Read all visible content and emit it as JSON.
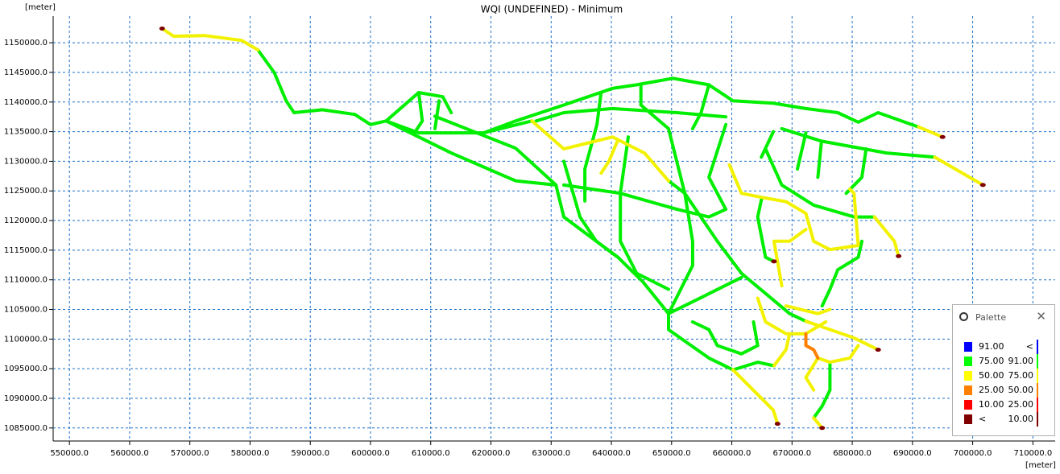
{
  "chart_data": {
    "type": "map",
    "title": "WQI (UNDEFINED) - Minimum",
    "x_label": "[meter]",
    "y_label": "[meter]",
    "grid": true,
    "xlim": [
      547300,
      713700
    ],
    "ylim": [
      1082800,
      1154500
    ],
    "xticks": [
      {
        "value": 550000,
        "label": "550000.0"
      },
      {
        "value": 560000,
        "label": "560000.0"
      },
      {
        "value": 570000,
        "label": "570000.0"
      },
      {
        "value": 580000,
        "label": "580000.0"
      },
      {
        "value": 590000,
        "label": "590000.0"
      },
      {
        "value": 600000,
        "label": "600000.0"
      },
      {
        "value": 610000,
        "label": "610000.0"
      },
      {
        "value": 620000,
        "label": "620000.0"
      },
      {
        "value": 630000,
        "label": "630000.0"
      },
      {
        "value": 640000,
        "label": "640000.0"
      },
      {
        "value": 650000,
        "label": "650000.0"
      },
      {
        "value": 660000,
        "label": "660000.0"
      },
      {
        "value": 670000,
        "label": "670000.0"
      },
      {
        "value": 680000,
        "label": "680000.0"
      },
      {
        "value": 690000,
        "label": "690000.0"
      },
      {
        "value": 700000,
        "label": "700000.0"
      },
      {
        "value": 710000,
        "label": "710000.0"
      }
    ],
    "yticks": [
      {
        "value": 1085000,
        "label": "1085000.0"
      },
      {
        "value": 1090000,
        "label": "1090000.0"
      },
      {
        "value": 1095000,
        "label": "1095000.0"
      },
      {
        "value": 1100000,
        "label": "1100000.0"
      },
      {
        "value": 1105000,
        "label": "1105000.0"
      },
      {
        "value": 1110000,
        "label": "1110000.0"
      },
      {
        "value": 1115000,
        "label": "1115000.0"
      },
      {
        "value": 1120000,
        "label": "1120000.0"
      },
      {
        "value": 1125000,
        "label": "1125000.0"
      },
      {
        "value": 1130000,
        "label": "1130000.0"
      },
      {
        "value": 1135000,
        "label": "1135000.0"
      },
      {
        "value": 1140000,
        "label": "1140000.0"
      },
      {
        "value": 1145000,
        "label": "1145000.0"
      },
      {
        "value": 1150000,
        "label": "1150000.0"
      }
    ],
    "series": [
      {
        "color": "#00ee00",
        "lines": [
          {
            "x": [
              581300,
              584000,
              586000,
              587300,
              592000,
              597400,
              600000,
              602600,
              608000,
              612000,
              613400
            ],
            "y": [
              1148800,
              1145000,
              1140200,
              1138200,
              1138700,
              1137900,
              1136200,
              1136800,
              1141600,
              1140900,
              1138200
            ]
          },
          {
            "x": [
              602600,
              608000,
              618800,
              624100,
              632100,
              640200,
              644200,
              650200,
              656200,
              660200,
              666900,
              672300,
              677600,
              681000,
              684300,
              691000
            ],
            "y": [
              1136800,
              1134800,
              1134800,
              1136800,
              1139500,
              1142300,
              1142900,
              1144000,
              1142900,
              1140200,
              1139800,
              1138900,
              1138200,
              1136600,
              1138200,
              1135800
            ]
          },
          {
            "x": [
              602600,
              613400,
              624100,
              630800,
              632100,
              641100,
              645200,
              649500,
              649500,
              656200,
              660200
            ],
            "y": [
              1136800,
              1131400,
              1126700,
              1126000,
              1120600,
              1113800,
              1109700,
              1104300,
              1101600,
              1096800,
              1094800
            ]
          },
          {
            "x": [
              610700,
              624100,
              630800
            ],
            "y": [
              1137600,
              1132200,
              1126000
            ]
          },
          {
            "x": [
              618800,
              626800
            ],
            "y": [
              1134800,
              1136800
            ]
          },
          {
            "x": [
              627500,
              632100,
              640200,
              650900,
              659000
            ],
            "y": [
              1136800,
              1138200,
              1138900,
              1138200,
              1137500
            ]
          },
          {
            "x": [
              632100,
              634800,
              637500,
              641100
            ],
            "y": [
              1130000,
              1120600,
              1116500,
              1113800
            ]
          },
          {
            "x": [
              642800,
              641500,
              641500,
              644200,
              649500
            ],
            "y": [
              1134100,
              1124600,
              1116500,
              1111100,
              1108400
            ]
          },
          {
            "x": [
              649500,
              652200,
              653500,
              653500,
              649500
            ],
            "y": [
              1126700,
              1124600,
              1116500,
              1112400,
              1104300
            ]
          },
          {
            "x": [
              644900,
              649500,
              652200,
              657600,
              661600,
              669600,
              672300
            ],
            "y": [
              1139500,
              1135500,
              1124600,
              1116500,
              1111100,
              1104300,
              1103000
            ]
          },
          {
            "x": [
              659000,
              656200,
              659000,
              656200,
              650900
            ],
            "y": [
              1136200,
              1127300,
              1121900,
              1120600,
              1121900
            ]
          },
          {
            "x": [
              665000,
              664300,
              665600,
              667000
            ],
            "y": [
              1123900,
              1120600,
              1113800,
              1113100
            ]
          },
          {
            "x": [
              665600,
              668300,
              673600,
              680300,
              683700
            ],
            "y": [
              1132100,
              1126000,
              1122600,
              1120600,
              1120600
            ]
          },
          {
            "x": [
              681600,
              681000,
              677600,
              676300,
              675000
            ],
            "y": [
              1116500,
              1113800,
              1111700,
              1108400,
              1105600
            ]
          },
          {
            "x": [
              679000,
              681600,
              682300
            ],
            "y": [
              1124600,
              1127300,
              1132100
            ]
          },
          {
            "x": [
              674900,
              674300
            ],
            "y": [
              1133400,
              1127300
            ]
          },
          {
            "x": [
              668300,
              674900,
              685700,
              693700
            ],
            "y": [
              1135500,
              1133400,
              1131400,
              1130700
            ]
          },
          {
            "x": [
              676300,
              676300,
              675000,
              673600
            ],
            "y": [
              1096100,
              1091400,
              1088700,
              1086700
            ]
          },
          {
            "x": [
              660200,
              664300,
              667000
            ],
            "y": [
              1094800,
              1096100,
              1095500
            ]
          },
          {
            "x": [
              649500,
              654900,
              661600
            ],
            "y": [
              1104300,
              1107000,
              1110400
            ]
          },
          {
            "x": [
              653500,
              656200,
              657600,
              661600,
              664300,
              663600
            ],
            "y": [
              1102900,
              1101600,
              1098900,
              1097500,
              1098900,
              1102900
            ]
          },
          {
            "x": [
              608000,
              608600,
              607300
            ],
            "y": [
              1141600,
              1136800,
              1134800
            ]
          },
          {
            "x": [
              611400,
              610700
            ],
            "y": [
              1140200,
              1135500
            ]
          },
          {
            "x": [
              656200,
              654900,
              653500
            ],
            "y": [
              1142900,
              1138200,
              1135500
            ]
          },
          {
            "x": [
              644900,
              644900
            ],
            "y": [
              1142800,
              1139500
            ]
          },
          {
            "x": [
              638300,
              637600,
              635600,
              635600
            ],
            "y": [
              1141600,
              1136200,
              1128700,
              1123300
            ]
          },
          {
            "x": [
              666900,
              664900
            ],
            "y": [
              1135000,
              1130700
            ]
          },
          {
            "x": [
              672300,
              670900
            ],
            "y": [
              1134800,
              1128700
            ]
          },
          {
            "x": [
              632100,
              641500,
              650900
            ],
            "y": [
              1126000,
              1124600,
              1121900
            ]
          }
        ]
      },
      {
        "color": "#f2f200",
        "lines": [
          {
            "x": [
              565400,
              567300,
              572600,
              578600,
              581300
            ],
            "y": [
              1152400,
              1151100,
              1151200,
              1150400,
              1148800
            ]
          },
          {
            "x": [
              691000,
              695000
            ],
            "y": [
              1135800,
              1134100
            ]
          },
          {
            "x": [
              626800,
              632100,
              640200,
              645500,
              649500
            ],
            "y": [
              1136800,
              1132100,
              1134100,
              1131400,
              1126700
            ]
          },
          {
            "x": [
              641000,
              639600,
              638300
            ],
            "y": [
              1133400,
              1130000,
              1128000
            ]
          },
          {
            "x": [
              672300,
              680300,
              684300
            ],
            "y": [
              1103000,
              1100200,
              1098200
            ]
          },
          {
            "x": [
              659600,
              661600,
              665000,
              669000,
              672300,
              673600,
              676300,
              681000
            ],
            "y": [
              1129400,
              1124600,
              1123900,
              1123200,
              1121200,
              1116500,
              1115100,
              1115800
            ]
          },
          {
            "x": [
              672300,
              669600,
              667000,
              668300
            ],
            "y": [
              1118500,
              1116500,
              1116500,
              1109000
            ]
          },
          {
            "x": [
              683700,
              687000,
              687700
            ],
            "y": [
              1120600,
              1116500,
              1114000
            ]
          },
          {
            "x": [
              681000,
              680300,
              679600
            ],
            "y": [
              1115800,
              1124600,
              1125300
            ]
          },
          {
            "x": [
              693700,
              701700
            ],
            "y": [
              1130700,
              1126000
            ]
          },
          {
            "x": [
              664300,
              665600,
              669000,
              672300,
              675600
            ],
            "y": [
              1106900,
              1102900,
              1100900,
              1100900,
              1102900
            ]
          },
          {
            "x": [
              669000,
              674300,
              676300
            ],
            "y": [
              1105600,
              1104300,
              1105000
            ]
          },
          {
            "x": [
              669600,
              669000,
              667000
            ],
            "y": [
              1100900,
              1098200,
              1095500
            ]
          },
          {
            "x": [
              674300,
              672300,
              673600
            ],
            "y": [
              1096800,
              1093500,
              1091400
            ]
          },
          {
            "x": [
              674300,
              676300,
              679600,
              681000
            ],
            "y": [
              1096800,
              1096100,
              1096800,
              1098900
            ]
          },
          {
            "x": [
              660200,
              666900,
              667600
            ],
            "y": [
              1094800,
              1088000,
              1085700
            ]
          },
          {
            "x": [
              673600,
              675000
            ],
            "y": [
              1086700,
              1085000
            ]
          }
        ]
      },
      {
        "color": "#ff8000",
        "lines": [
          {
            "x": [
              672300,
              672300,
              673600,
              674300
            ],
            "y": [
              1100900,
              1098900,
              1098200,
              1096800
            ]
          }
        ]
      }
    ],
    "markers": {
      "color": "#800000",
      "x": [
        565400,
        695000,
        701700,
        687700,
        684300,
        667600,
        675000,
        667000
      ],
      "y": [
        1152400,
        1134100,
        1126000,
        1114000,
        1098200,
        1085700,
        1085000,
        1113100
      ]
    },
    "palette": {
      "title": "Palette",
      "rows": [
        {
          "color": "#0000ff",
          "left": "91.00",
          "right": "<"
        },
        {
          "color": "#00ff00",
          "left": "75.00",
          "right": "91.00"
        },
        {
          "color": "#ffff00",
          "left": "50.00",
          "right": "75.00"
        },
        {
          "color": "#ff8000",
          "left": "25.00",
          "right": "50.00"
        },
        {
          "color": "#ff0000",
          "left": "10.00",
          "right": "25.00"
        },
        {
          "color": "#800000",
          "left": "<",
          "right": "10.00"
        }
      ]
    }
  }
}
